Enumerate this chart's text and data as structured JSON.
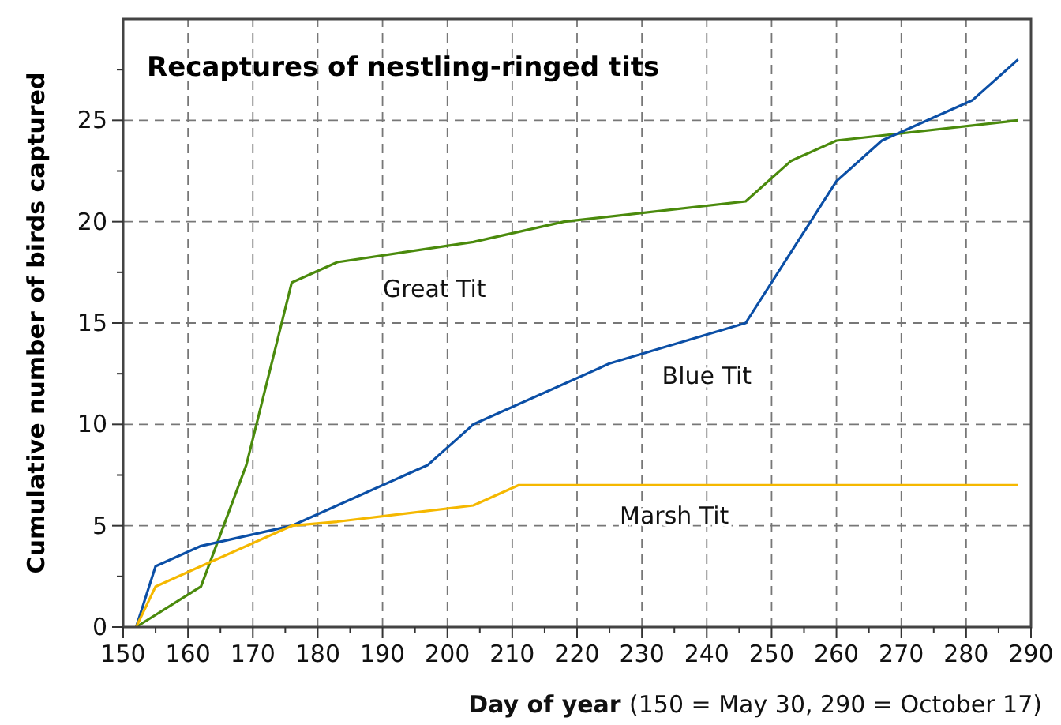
{
  "chart_data": {
    "type": "line",
    "title": "Recaptures of nestling-ringed tits",
    "xlabel": "Day of year  (150 = May 30, 290 = October 17)",
    "ylabel": "Cumulative number of birds captured",
    "series": [
      {
        "name": "Great Tit",
        "color": "#4a8a0c",
        "x": [
          152,
          162,
          169,
          176,
          183,
          204,
          218,
          246,
          253,
          260,
          288
        ],
        "values": [
          0,
          2,
          8,
          17,
          18,
          19,
          20,
          21,
          23,
          24,
          25
        ]
      },
      {
        "name": "Blue Tit",
        "color": "#0b4fa6",
        "x": [
          152,
          155,
          162,
          176,
          197,
          204,
          225,
          246,
          260,
          267,
          281,
          288
        ],
        "values": [
          0,
          3,
          4,
          5,
          8,
          10,
          13,
          15,
          22,
          24,
          26,
          28
        ]
      },
      {
        "name": "Marsh Tit",
        "color": "#f5b800",
        "x": [
          152,
          155,
          176,
          183,
          204,
          211,
          288
        ],
        "values": [
          0,
          2,
          5,
          5.2,
          6,
          7,
          7
        ]
      }
    ],
    "xlim": [
      150,
      290
    ],
    "xticks": [
      150,
      {
        "value": 155,
        "label": null
      },
      160,
      {
        "value": 165,
        "label": null
      },
      170,
      {
        "value": 175,
        "label": null
      },
      180,
      {
        "value": 185,
        "label": null
      },
      190,
      {
        "value": 195,
        "label": null
      },
      200,
      {
        "value": 205,
        "label": null
      },
      210,
      {
        "value": 215,
        "label": null
      },
      220,
      {
        "value": 225,
        "label": null
      },
      230,
      {
        "value": 235,
        "label": null
      },
      240,
      {
        "value": 245,
        "label": null
      },
      250,
      {
        "value": 255,
        "label": null
      },
      260,
      {
        "value": 265,
        "label": null
      },
      270,
      {
        "value": 275,
        "label": null
      },
      280,
      {
        "value": 285,
        "label": null
      },
      290
    ],
    "ylim": [
      0,
      30
    ],
    "yticks": [
      0,
      {
        "value": 2.5,
        "label": null
      },
      5,
      {
        "value": 7.5,
        "label": null
      },
      10,
      {
        "value": 12.5,
        "label": null
      },
      15,
      {
        "value": 17.5,
        "label": null
      },
      20,
      {
        "value": 22.5,
        "label": null
      },
      25,
      {
        "value": 27.5,
        "label": null
      }
    ],
    "grid": true,
    "legend": false,
    "marker": "none",
    "line_style": "solid"
  }
}
